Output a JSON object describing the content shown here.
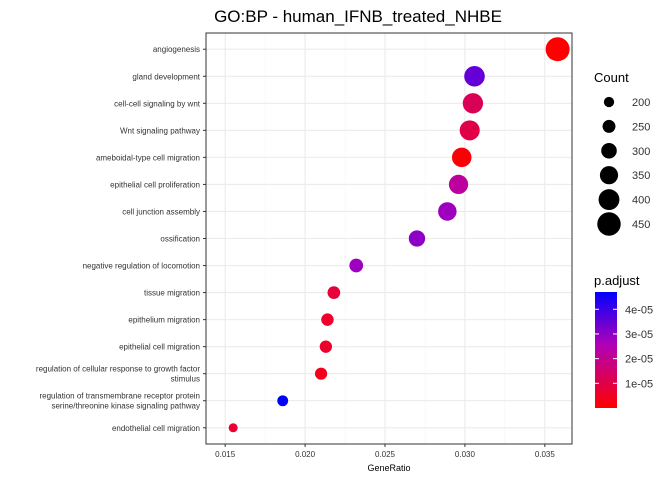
{
  "chart_data": {
    "type": "scatter",
    "title": "GO:BP - human_IFNB_treated_NHBE",
    "xlabel": "GeneRatio",
    "ylabel": "",
    "xlim": [
      0.0138,
      0.0367
    ],
    "xticks": [
      "0.015",
      "0.020",
      "0.025",
      "0.030",
      "0.035"
    ],
    "xtick_values": [
      0.015,
      0.02,
      0.025,
      0.03,
      0.035
    ],
    "categories": [
      "angiogenesis",
      "gland development",
      "cell-cell signaling by wnt",
      "Wnt signaling pathway",
      "ameboidal-type cell migration",
      "epithelial cell proliferation",
      "cell junction assembly",
      "ossification",
      "negative regulation of locomotion",
      "tissue migration",
      "epithelium migration",
      "epithelial cell migration",
      [
        "regulation of cellular response to growth factor",
        "stimulus"
      ],
      [
        "regulation of transmembrane receptor protein",
        "serine/threonine kinase signaling pathway"
      ],
      "endothelial cell migration"
    ],
    "points": [
      {
        "gene_ratio": 0.0358,
        "count": 460,
        "p_adjust": 1e-07
      },
      {
        "gene_ratio": 0.0306,
        "count": 395,
        "p_adjust": 3.5e-05
      },
      {
        "gene_ratio": 0.0305,
        "count": 390,
        "p_adjust": 1.2e-05
      },
      {
        "gene_ratio": 0.0303,
        "count": 385,
        "p_adjust": 1e-05
      },
      {
        "gene_ratio": 0.0298,
        "count": 375,
        "p_adjust": 1e-06
      },
      {
        "gene_ratio": 0.0296,
        "count": 370,
        "p_adjust": 2.2e-05
      },
      {
        "gene_ratio": 0.0289,
        "count": 355,
        "p_adjust": 2.8e-05
      },
      {
        "gene_ratio": 0.027,
        "count": 315,
        "p_adjust": 3e-05
      },
      {
        "gene_ratio": 0.0232,
        "count": 265,
        "p_adjust": 2.8e-05
      },
      {
        "gene_ratio": 0.0218,
        "count": 245,
        "p_adjust": 8e-06
      },
      {
        "gene_ratio": 0.0214,
        "count": 240,
        "p_adjust": 6e-06
      },
      {
        "gene_ratio": 0.0213,
        "count": 238,
        "p_adjust": 6e-06
      },
      {
        "gene_ratio": 0.021,
        "count": 235,
        "p_adjust": 4e-06
      },
      {
        "gene_ratio": 0.0186,
        "count": 210,
        "p_adjust": 4.7e-05
      },
      {
        "gene_ratio": 0.0155,
        "count": 175,
        "p_adjust": 7e-06
      }
    ],
    "grid": true,
    "size_legend": {
      "title": "Count",
      "values": [
        200,
        250,
        300,
        350,
        400,
        450
      ],
      "labels": [
        "200",
        "250",
        "300",
        "350",
        "400",
        "450"
      ]
    },
    "color_legend": {
      "title": "p.adjust",
      "low_color": "#FF0000",
      "high_color": "#0000FF",
      "range": [
        0.0,
        4.7e-05
      ],
      "tick_values": [
        1e-05,
        2e-05,
        3e-05,
        4e-05
      ],
      "tick_labels": [
        "1e-05",
        "2e-05",
        "3e-05",
        "4e-05"
      ]
    },
    "legend_position": "right",
    "colors": {
      "panel_border": "#333333",
      "grid_major": "#EBEBEB",
      "grid_minor": "#F5F5F5",
      "tick": "#333333"
    }
  }
}
